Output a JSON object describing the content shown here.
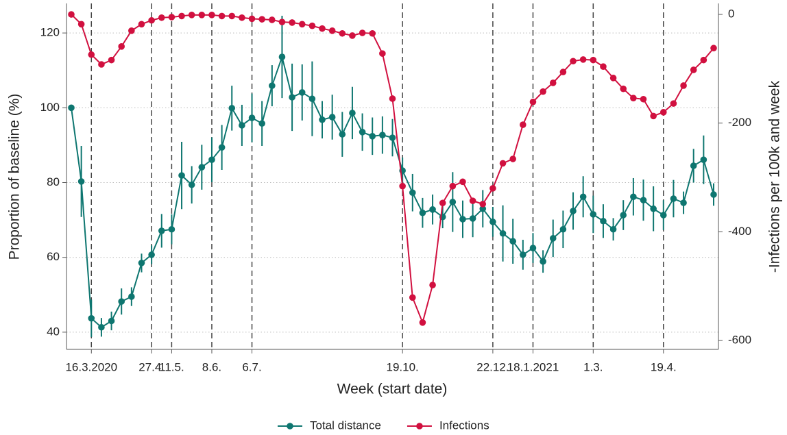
{
  "chart_data": {
    "type": "line",
    "xlabel": "Week (start date)",
    "ylabel": "Proportion of baseline (%)",
    "y2label": "-Infections per 100k and week",
    "categories": [
      null,
      null,
      "16.3.2020",
      null,
      null,
      null,
      null,
      null,
      "27.4.",
      null,
      "11.5.",
      null,
      null,
      null,
      "8.6.",
      null,
      null,
      null,
      "6.7.",
      null,
      null,
      null,
      null,
      null,
      null,
      null,
      null,
      null,
      null,
      null,
      null,
      null,
      null,
      "19.10.",
      null,
      null,
      null,
      null,
      null,
      null,
      null,
      null,
      "22.12.",
      null,
      null,
      null,
      "18.1.2021",
      null,
      null,
      null,
      null,
      null,
      "1.3.",
      null,
      null,
      null,
      null,
      null,
      null,
      "19.4.",
      null,
      null,
      null,
      null,
      null
    ],
    "ylim": [
      35.4,
      127.9
    ],
    "yticks": [
      40,
      60,
      80,
      100,
      120
    ],
    "y2lim": [
      -616.4,
      20.2
    ],
    "y2ticks": [
      0,
      -200,
      -400,
      -600
    ],
    "grid": true,
    "legend": "bottom",
    "series": [
      {
        "name": "Total distance",
        "color": "#0e7670",
        "values": [
          100,
          80.3,
          43.7,
          41.3,
          43,
          48.2,
          49.5,
          58.5,
          60.7,
          67.1,
          67.5,
          81.9,
          79.4,
          84.1,
          86.1,
          89.4,
          99.9,
          95.3,
          97.3,
          95.8,
          105.9,
          113.6,
          102.8,
          104.1,
          102.4,
          96.8,
          97.5,
          92.9,
          98.6,
          93.5,
          92.4,
          92.7,
          92,
          83.2,
          77.3,
          71.9,
          72.8,
          70.8,
          74.8,
          70.2,
          70.4,
          73,
          69.5,
          66.4,
          64.3,
          60.7,
          62.5,
          58.9,
          65.1,
          67.5,
          72.4,
          76.2,
          71.5,
          69.7,
          67.5,
          71.3,
          76.2,
          75.3,
          73,
          71.3,
          75.7,
          74.6,
          84.5,
          86.1,
          76.8
        ],
        "errors": [
          0,
          9.5,
          5,
          2.5,
          2.5,
          3.5,
          2.5,
          2.5,
          2.5,
          4.5,
          4,
          9,
          5,
          6,
          6,
          6,
          6,
          5.5,
          6.5,
          6,
          5.5,
          11,
          9,
          7.5,
          10,
          5,
          6,
          6,
          7,
          5,
          5,
          5,
          5,
          3.5,
          5,
          4,
          4,
          3,
          8,
          5,
          5,
          5,
          4,
          7.5,
          6,
          4,
          4,
          3,
          5,
          5,
          5,
          5.5,
          5,
          4.5,
          3,
          4,
          5,
          5.5,
          6,
          4,
          5,
          3,
          4.5,
          6.5,
          3
        ]
      },
      {
        "name": "Infections",
        "color": "#d1103f",
        "axis": "y2",
        "values": [
          0,
          -18,
          -74,
          -92,
          -84,
          -59,
          -30,
          -18,
          -11,
          -6,
          -5,
          -3,
          -1,
          -1,
          -1,
          -3,
          -3,
          -6,
          -8,
          -9,
          -10,
          -14,
          -15,
          -18,
          -21,
          -26,
          -30,
          -35,
          -39,
          -34,
          -35,
          -72,
          -155,
          -316,
          -521,
          -567,
          -498,
          -347,
          -316,
          -308,
          -343,
          -349,
          -320,
          -274,
          -266,
          -203,
          -161,
          -142,
          -126,
          -106,
          -86,
          -83,
          -84,
          -96,
          -117,
          -137,
          -154,
          -156,
          -187,
          -180,
          -164,
          -131,
          -102,
          -84,
          -62
        ]
      }
    ]
  }
}
